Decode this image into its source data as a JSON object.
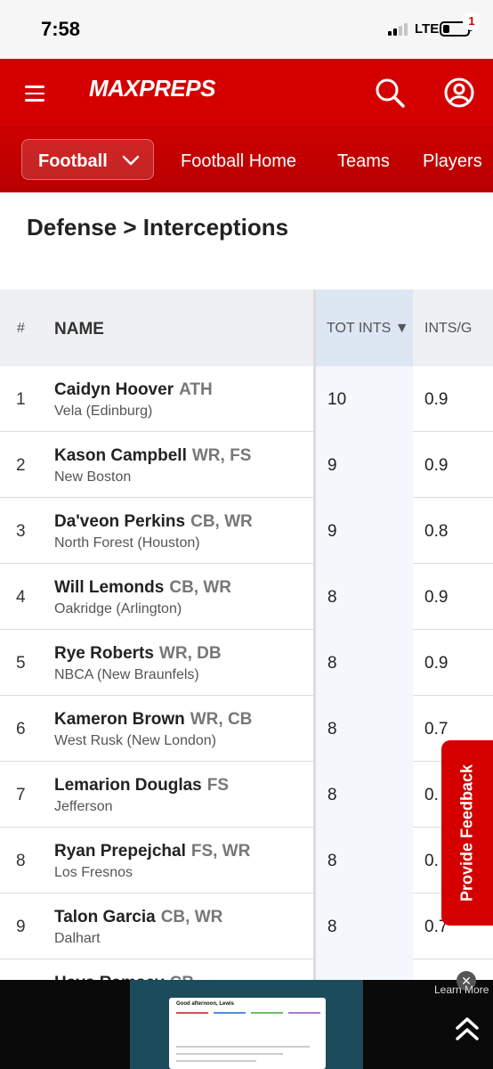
{
  "status_bar": {
    "time": "7:58",
    "network": "LTE"
  },
  "header": {
    "logo": "MAXPREPS",
    "badge_count": "1"
  },
  "subnav": {
    "sport": "Football",
    "links": [
      "Football Home",
      "Teams",
      "Players"
    ]
  },
  "page_title": "Defense > Interceptions",
  "table": {
    "columns": {
      "rank": "#",
      "name": "NAME",
      "tot_ints": "TOT INTS ▼",
      "ints_per_game": "INTS/G"
    },
    "rows": [
      {
        "rank": "1",
        "name": "Caidyn Hoover",
        "pos": "ATH",
        "school": "Vela (Edinburg)",
        "tot": "10",
        "ipg": "0.9"
      },
      {
        "rank": "2",
        "name": "Kason Campbell",
        "pos": "WR, FS",
        "school": "New Boston",
        "tot": "9",
        "ipg": "0.9"
      },
      {
        "rank": "3",
        "name": "Da'veon Perkins",
        "pos": "CB, WR",
        "school": "North Forest (Houston)",
        "tot": "9",
        "ipg": "0.8"
      },
      {
        "rank": "4",
        "name": "Will Lemonds",
        "pos": "CB, WR",
        "school": "Oakridge (Arlington)",
        "tot": "8",
        "ipg": "0.9"
      },
      {
        "rank": "5",
        "name": "Rye Roberts",
        "pos": "WR, DB",
        "school": "NBCA (New Braunfels)",
        "tot": "8",
        "ipg": "0.9"
      },
      {
        "rank": "6",
        "name": "Kameron Brown",
        "pos": "WR, CB",
        "school": "West Rusk (New London)",
        "tot": "8",
        "ipg": "0.7"
      },
      {
        "rank": "7",
        "name": "Lemarion Douglas",
        "pos": "FS",
        "school": "Jefferson",
        "tot": "8",
        "ipg": "0."
      },
      {
        "rank": "8",
        "name": "Ryan Prepejchal",
        "pos": "FS, WR",
        "school": "Los Fresnos",
        "tot": "8",
        "ipg": "0."
      },
      {
        "rank": "9",
        "name": "Talon Garcia",
        "pos": "CB, WR",
        "school": "Dalhart",
        "tot": "8",
        "ipg": "0.7"
      },
      {
        "rank": "",
        "name": "Hays Ramsey",
        "pos": "CB",
        "school": "",
        "tot": "",
        "ipg": ""
      }
    ]
  },
  "feedback_label": "Provide Feedback",
  "ad": {
    "learn_more": "Learn More",
    "close": "✕",
    "card_title": "Good afternoon, Lewis"
  },
  "colors": {
    "brand_red": "#d40000",
    "sorted_column": "#dde6f3"
  },
  "icons": [
    "hamburger-icon",
    "search-icon",
    "account-icon",
    "chevron-down-icon",
    "double-chevron-up-icon"
  ]
}
